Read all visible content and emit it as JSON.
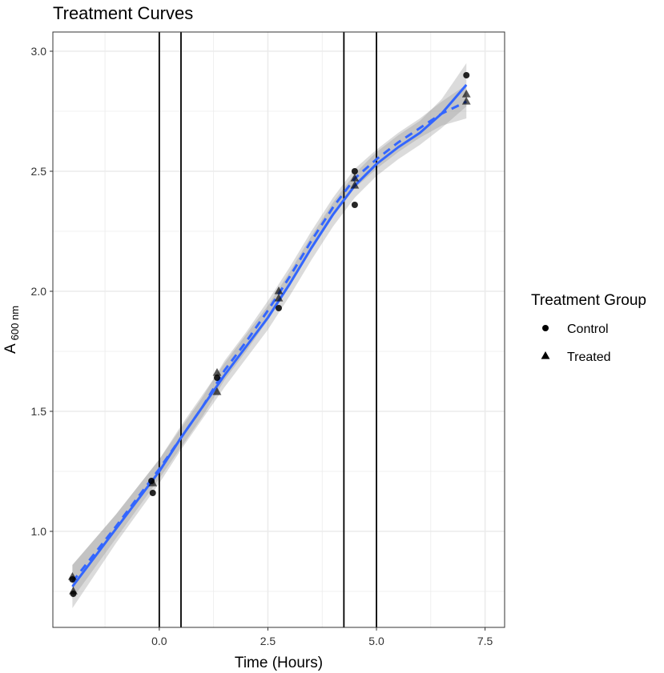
{
  "chart_data": {
    "type": "scatter",
    "title": "Treatment Curves",
    "xlabel": "Time (Hours)",
    "ylabel_main": "A",
    "ylabel_sub": "600 nm",
    "xlim": [
      -2.45,
      7.95
    ],
    "ylim": [
      0.6,
      3.08
    ],
    "x_ticks": [
      0.0,
      2.5,
      5.0,
      7.5
    ],
    "x_tick_labels": [
      "0.0",
      "2.5",
      "5.0",
      "7.5"
    ],
    "y_ticks": [
      1.0,
      1.5,
      2.0,
      2.5,
      3.0
    ],
    "y_tick_labels": [
      "1.0",
      "1.5",
      "2.0",
      "2.5",
      "3.0"
    ],
    "grid": true,
    "vertical_lines": [
      0.0,
      0.5,
      4.25,
      5.0
    ],
    "legend": {
      "title": "Treatment Group",
      "position": "right",
      "entries": [
        {
          "label": "Control",
          "shape": "circle"
        },
        {
          "label": "Treated",
          "shape": "triangle"
        }
      ]
    },
    "colors": {
      "fit": "#3366FF",
      "ribbon": "#999999",
      "points": "#000000",
      "gridline": "#ebebeb"
    },
    "series": [
      {
        "name": "Control",
        "shape": "circle",
        "x": [
          -2.0,
          -1.98,
          -0.15,
          -0.18,
          1.33,
          2.75,
          4.5,
          4.5,
          7.07
        ],
        "y": [
          0.8,
          0.74,
          1.16,
          1.21,
          1.64,
          1.93,
          2.5,
          2.36,
          2.9
        ]
      },
      {
        "name": "Treated",
        "shape": "triangle",
        "x": [
          -2.0,
          -1.98,
          -0.15,
          1.33,
          1.33,
          2.75,
          2.75,
          4.5,
          4.5,
          7.07,
          7.07
        ],
        "y": [
          0.81,
          0.75,
          1.2,
          1.58,
          1.66,
          1.97,
          2.0,
          2.44,
          2.47,
          2.79,
          2.82
        ]
      }
    ],
    "fits": [
      {
        "group": "Control",
        "linetype": "solid",
        "x": [
          -2.0,
          -1.0,
          0.0,
          0.5,
          1.0,
          1.5,
          2.0,
          2.5,
          3.0,
          3.5,
          4.0,
          4.5,
          5.0,
          5.5,
          6.0,
          6.5,
          7.07
        ],
        "y": [
          0.77,
          1.01,
          1.25,
          1.39,
          1.52,
          1.65,
          1.77,
          1.89,
          2.03,
          2.18,
          2.32,
          2.44,
          2.53,
          2.6,
          2.66,
          2.74,
          2.86
        ],
        "ci_half_width": [
          0.09,
          0.06,
          0.05,
          0.05,
          0.05,
          0.05,
          0.05,
          0.05,
          0.05,
          0.05,
          0.05,
          0.05,
          0.05,
          0.05,
          0.05,
          0.06,
          0.09
        ]
      },
      {
        "group": "Treated",
        "linetype": "dashed",
        "x": [
          -2.0,
          -1.0,
          0.0,
          0.5,
          1.0,
          1.5,
          2.0,
          2.5,
          3.0,
          3.5,
          4.0,
          4.5,
          5.0,
          5.5,
          6.0,
          6.5,
          7.07
        ],
        "y": [
          0.79,
          1.02,
          1.26,
          1.39,
          1.52,
          1.67,
          1.79,
          1.92,
          2.06,
          2.21,
          2.35,
          2.47,
          2.55,
          2.62,
          2.68,
          2.74,
          2.79
        ],
        "ci_half_width": [
          0.07,
          0.05,
          0.04,
          0.04,
          0.04,
          0.04,
          0.04,
          0.04,
          0.04,
          0.04,
          0.04,
          0.04,
          0.04,
          0.04,
          0.04,
          0.05,
          0.07
        ]
      }
    ]
  }
}
